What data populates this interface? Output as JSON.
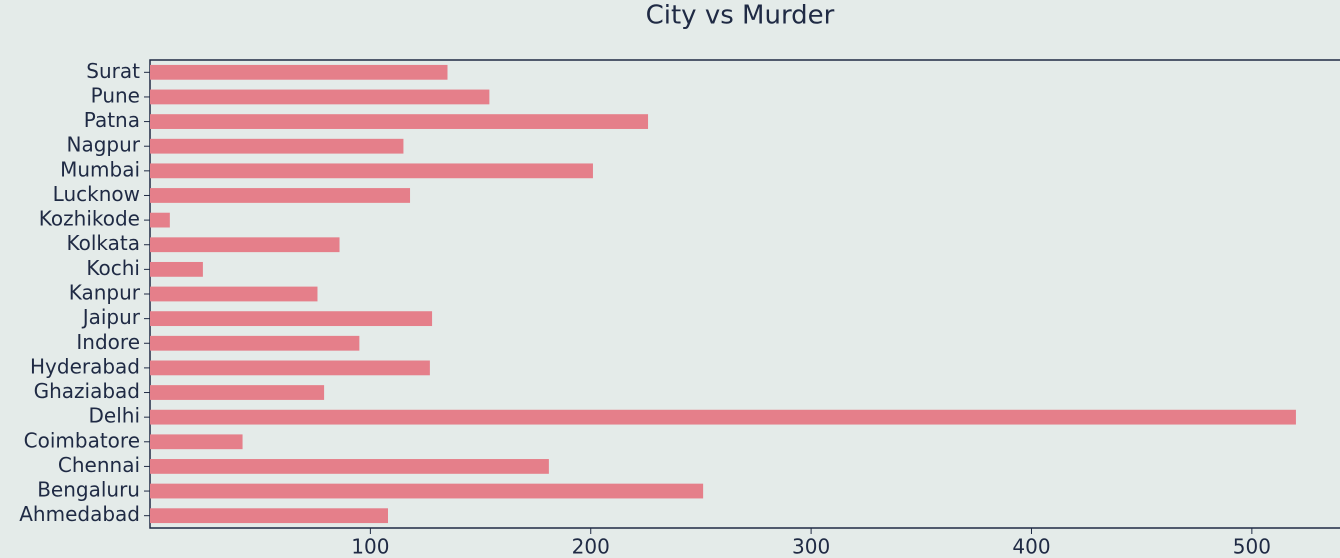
{
  "chart_data": {
    "type": "barh",
    "title": "City vs Murder",
    "categories": [
      "Ahmedabad",
      "Bengaluru",
      "Chennai",
      "Coimbatore",
      "Delhi",
      "Ghaziabad",
      "Hyderabad",
      "Indore",
      "Jaipur",
      "Kanpur",
      "Kochi",
      "Kolkata",
      "Kozhikode",
      "Lucknow",
      "Mumbai",
      "Nagpur",
      "Patna",
      "Pune",
      "Surat"
    ],
    "values": [
      108,
      251,
      181,
      42,
      520,
      79,
      127,
      95,
      128,
      76,
      24,
      86,
      9,
      118,
      201,
      115,
      226,
      154,
      135
    ],
    "color": "#e57f8a",
    "xlim": [
      0,
      540
    ],
    "xticks": [
      100,
      200,
      300,
      400,
      500
    ],
    "grid": false
  }
}
